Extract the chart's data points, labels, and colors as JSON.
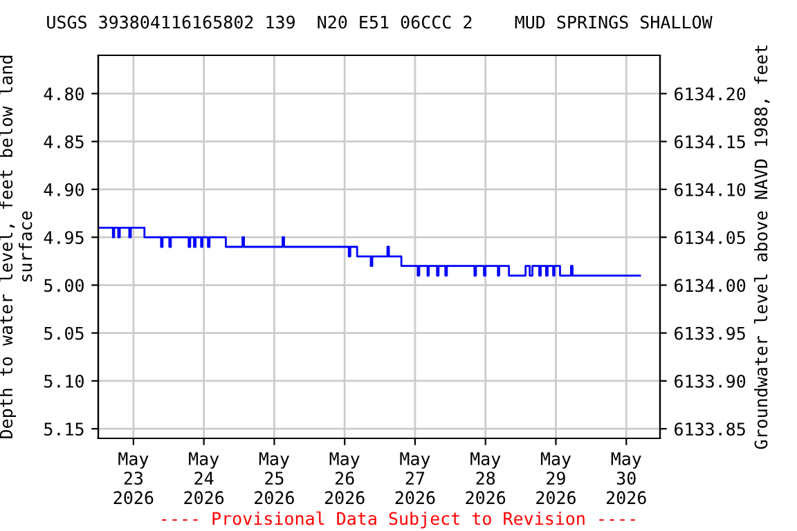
{
  "chart_data": {
    "type": "step",
    "title": "USGS 393804116165802 139  N20 E51 06CCC 2    MUD SPRINGS SHALLOW",
    "ylabel": "Depth to water level, feet below land\nsurface",
    "y2label": "Groundwater level above NAVD 1988, feet",
    "annotations": [
      "---- Provisional Data Subject to Revision ----"
    ],
    "series": [
      {
        "color": "#0000ff",
        "x": [
          "2026-05-22T12:15",
          "2026-05-22T17:00",
          "2026-05-22T17:25",
          "2026-05-22T18:50",
          "2026-05-22T19:20",
          "2026-05-22T22:35",
          "2026-05-22T23:05",
          "2026-05-23T03:45",
          "2026-05-23T09:25",
          "2026-05-23T09:55",
          "2026-05-23T12:15",
          "2026-05-23T12:45",
          "2026-05-23T18:50",
          "2026-05-23T19:20",
          "2026-05-23T20:40",
          "2026-05-23T21:10",
          "2026-05-23T23:05",
          "2026-05-23T23:30",
          "2026-05-24T01:25",
          "2026-05-24T01:55",
          "2026-05-24T07:30",
          "2026-05-24T13:10",
          "2026-05-24T13:40",
          "2026-05-25T02:50",
          "2026-05-25T03:20",
          "2026-05-26T01:25",
          "2026-05-26T01:55",
          "2026-05-26T04:15",
          "2026-05-26T08:55",
          "2026-05-26T09:25",
          "2026-05-26T14:35",
          "2026-05-26T15:05",
          "2026-05-26T19:20",
          "2026-05-27T00:55",
          "2026-05-27T01:25",
          "2026-05-27T04:15",
          "2026-05-27T04:40",
          "2026-05-27T07:30",
          "2026-05-27T08:00",
          "2026-05-27T10:20",
          "2026-05-27T10:50",
          "2026-05-27T20:15",
          "2026-05-27T20:45",
          "2026-05-27T23:30",
          "2026-05-28T00:00",
          "2026-05-28T04:15",
          "2026-05-28T04:40",
          "2026-05-28T08:00",
          "2026-05-28T13:40",
          "2026-05-28T15:05",
          "2026-05-28T16:00",
          "2026-05-28T18:20",
          "2026-05-28T18:50",
          "2026-05-28T20:40",
          "2026-05-28T21:10",
          "2026-05-28T23:05",
          "2026-05-28T23:30",
          "2026-05-29T01:25",
          "2026-05-29T05:10",
          "2026-05-29T05:40",
          "2026-05-30T04:40"
        ],
        "values": [
          4.94,
          4.95,
          4.94,
          4.95,
          4.94,
          4.95,
          4.94,
          4.95,
          4.96,
          4.95,
          4.96,
          4.95,
          4.96,
          4.95,
          4.96,
          4.95,
          4.96,
          4.95,
          4.96,
          4.95,
          4.96,
          4.95,
          4.96,
          4.95,
          4.96,
          4.97,
          4.96,
          4.97,
          4.98,
          4.97,
          4.96,
          4.97,
          4.98,
          4.99,
          4.98,
          4.99,
          4.98,
          4.99,
          4.98,
          4.99,
          4.98,
          4.99,
          4.98,
          4.99,
          4.98,
          4.99,
          4.98,
          4.99,
          4.98,
          4.99,
          4.98,
          4.99,
          4.98,
          4.99,
          4.98,
          4.99,
          4.98,
          4.99,
          4.98,
          4.99,
          4.99
        ]
      }
    ],
    "xlim": [
      "2026-05-22T12:00",
      "2026-05-30T11:30"
    ],
    "xticks": [
      {
        "value": "2026-05-23",
        "label": "May\n23\n2026"
      },
      {
        "value": "2026-05-24",
        "label": "May\n24\n2026"
      },
      {
        "value": "2026-05-25",
        "label": "May\n25\n2026"
      },
      {
        "value": "2026-05-26",
        "label": "May\n26\n2026"
      },
      {
        "value": "2026-05-27",
        "label": "May\n27\n2026"
      },
      {
        "value": "2026-05-28",
        "label": "May\n28\n2026"
      },
      {
        "value": "2026-05-29",
        "label": "May\n29\n2026"
      },
      {
        "value": "2026-05-30",
        "label": "May\n30\n2026"
      }
    ],
    "ylim": [
      5.16,
      4.76
    ],
    "yticks": [
      {
        "value": 4.8,
        "label": "4.80"
      },
      {
        "value": 4.85,
        "label": "4.85"
      },
      {
        "value": 4.9,
        "label": "4.90"
      },
      {
        "value": 4.95,
        "label": "4.95"
      },
      {
        "value": 5.0,
        "label": "5.00"
      },
      {
        "value": 5.05,
        "label": "5.05"
      },
      {
        "value": 5.1,
        "label": "5.10"
      },
      {
        "value": 5.15,
        "label": "5.15"
      }
    ],
    "y2lim": [
      6133.84,
      6134.24
    ],
    "y2ticks": [
      {
        "value": 6133.85,
        "label": "6133.85"
      },
      {
        "value": 6133.9,
        "label": "6133.90"
      },
      {
        "value": 6133.95,
        "label": "6133.95"
      },
      {
        "value": 6134.0,
        "label": "6134.00"
      },
      {
        "value": 6134.05,
        "label": "6134.05"
      },
      {
        "value": 6134.1,
        "label": "6134.10"
      },
      {
        "value": 6134.15,
        "label": "6134.15"
      },
      {
        "value": 6134.2,
        "label": "6134.20"
      }
    ],
    "grid": true,
    "legend": false
  }
}
